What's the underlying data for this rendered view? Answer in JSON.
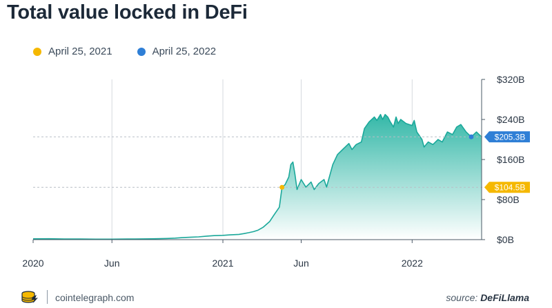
{
  "title": "Total value locked in DeFi",
  "legend": [
    {
      "label": "April 25, 2021",
      "color": "#f5b800"
    },
    {
      "label": "April 25, 2022",
      "color": "#2f7fd6"
    }
  ],
  "footer": {
    "site": "cointelegraph.com",
    "source_prefix": "source: ",
    "source_name": "DeFiLlama"
  },
  "colors": {
    "line": "#1aa89a",
    "fill_top": "#34b8a8",
    "fill_bottom": "#ffffff",
    "axis": "#4a5866",
    "grid": "#d5d9de"
  },
  "chart_data": {
    "type": "area",
    "title": "Total value locked in DeFi",
    "y_unit": "$ billions",
    "ylim": [
      0,
      320
    ],
    "y_ticks": [
      0,
      80,
      160,
      240,
      320
    ],
    "y_tick_labels": [
      "$0B",
      "$80B",
      "$160B",
      "$240B",
      "$320B"
    ],
    "x_range": [
      "2020-01-01",
      "2022-05-15"
    ],
    "x_ticks": [
      "2020-01-01",
      "2020-06-01",
      "2021-01-01",
      "2021-06-01",
      "2022-01-01"
    ],
    "x_tick_labels": [
      "2020",
      "Jun",
      "2021",
      "Jun",
      "2022"
    ],
    "grid": "vertical",
    "legend_position": "top-left",
    "highlights": [
      {
        "date": "2021-04-25",
        "value": 104.5,
        "label": "$104.5B",
        "color": "#f5b800"
      },
      {
        "date": "2022-04-25",
        "value": 205.3,
        "label": "$205.3B",
        "color": "#2f7fd6"
      }
    ],
    "series": [
      {
        "x": [
          "2020-01-01",
          "2020-02-01",
          "2020-03-01",
          "2020-04-01",
          "2020-05-01",
          "2020-06-01",
          "2020-07-01",
          "2020-07-15",
          "2020-08-01",
          "2020-08-15",
          "2020-09-01",
          "2020-09-15",
          "2020-10-01",
          "2020-10-15",
          "2020-11-01",
          "2020-11-15",
          "2020-12-01",
          "2020-12-15",
          "2021-01-01",
          "2021-01-15",
          "2021-02-01",
          "2021-02-10",
          "2021-02-20",
          "2021-03-01",
          "2021-03-10",
          "2021-03-20",
          "2021-04-01",
          "2021-04-10",
          "2021-04-20",
          "2021-04-25",
          "2021-05-01",
          "2021-05-08",
          "2021-05-12",
          "2021-05-16",
          "2021-05-20",
          "2021-05-24",
          "2021-06-01",
          "2021-06-10",
          "2021-06-20",
          "2021-06-26",
          "2021-07-05",
          "2021-07-15",
          "2021-07-20",
          "2021-08-01",
          "2021-08-10",
          "2021-08-20",
          "2021-09-01",
          "2021-09-07",
          "2021-09-15",
          "2021-09-25",
          "2021-10-01",
          "2021-10-10",
          "2021-10-20",
          "2021-10-25",
          "2021-11-01",
          "2021-11-05",
          "2021-11-10",
          "2021-11-15",
          "2021-11-20",
          "2021-11-26",
          "2021-12-01",
          "2021-12-05",
          "2021-12-10",
          "2021-12-20",
          "2022-01-01",
          "2022-01-05",
          "2022-01-10",
          "2022-01-20",
          "2022-01-24",
          "2022-02-01",
          "2022-02-10",
          "2022-02-20",
          "2022-02-28",
          "2022-03-10",
          "2022-03-20",
          "2022-03-28",
          "2022-04-05",
          "2022-04-15",
          "2022-04-25",
          "2022-05-05",
          "2022-05-15"
        ],
        "values": [
          1.6,
          1.8,
          1.4,
          1.3,
          1.0,
          1.0,
          1.3,
          1.4,
          1.5,
          1.6,
          2.0,
          2.4,
          3.0,
          4.0,
          5.0,
          5.5,
          7.0,
          8.0,
          8.5,
          9.5,
          10.5,
          12.0,
          14.0,
          16.0,
          19.0,
          25.0,
          36.0,
          50.0,
          65.0,
          104.5,
          110.0,
          125.0,
          150.0,
          155.0,
          130.0,
          100.0,
          120.0,
          105.0,
          115.0,
          100.0,
          112.0,
          120.0,
          105.0,
          150.0,
          170.0,
          180.0,
          192.0,
          180.0,
          190.0,
          195.0,
          222.0,
          235.0,
          245.0,
          238.0,
          250.0,
          240.0,
          250.0,
          245.0,
          235.0,
          225.0,
          245.0,
          232.0,
          240.0,
          232.0,
          228.0,
          238.0,
          215.0,
          200.0,
          185.0,
          195.0,
          190.0,
          200.0,
          195.0,
          215.0,
          210.0,
          225.0,
          230.0,
          215.0,
          205.3,
          215.0,
          205.0
        ]
      }
    ]
  }
}
